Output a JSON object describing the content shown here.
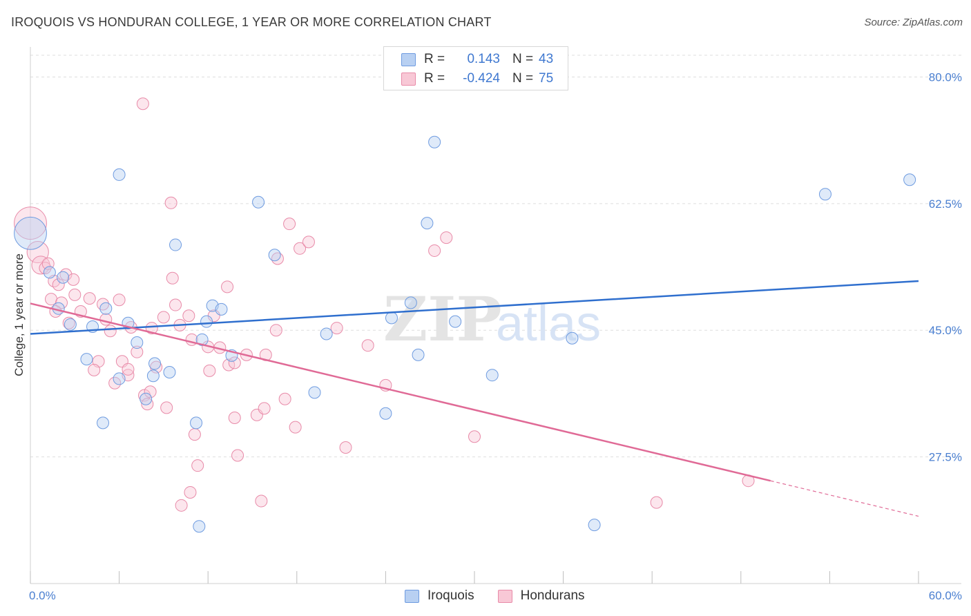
{
  "header": {
    "title": "IROQUOIS VS HONDURAN COLLEGE, 1 YEAR OR MORE CORRELATION CHART",
    "source": "Source: ZipAtlas.com"
  },
  "legend": {
    "r_label": "R =",
    "n_label": "N =",
    "items": [
      {
        "name": "Iroquois",
        "r": "0.143",
        "n": "43",
        "fill": "#b8d0f2",
        "stroke": "#6e9be0"
      },
      {
        "name": "Hondurans",
        "r": "-0.424",
        "n": "75",
        "fill": "#f8c8d6",
        "stroke": "#e88aa8"
      }
    ]
  },
  "watermark": {
    "zip": "ZIP",
    "atlas": "atlas"
  },
  "colors": {
    "iroquois_line": "#2f6fce",
    "honduran_line": "#e06a96",
    "tick_label": "#4a7fd0",
    "grid": "#dddddd"
  },
  "chart_data": {
    "type": "scatter",
    "title": "IROQUOIS VS HONDURAN COLLEGE, 1 YEAR OR MORE CORRELATION CHART",
    "xlabel": "",
    "ylabel": "College, 1 year or more",
    "xlim": [
      0,
      60
    ],
    "ylim": [
      10,
      83
    ],
    "x_tick_labels": [
      "0.0%",
      "60.0%"
    ],
    "y_ticks": [
      27.5,
      45.0,
      62.5,
      80.0
    ],
    "y_tick_labels": [
      "27.5%",
      "45.0%",
      "62.5%",
      "80.0%"
    ],
    "grid": "horizontal dashed",
    "legend_position": "top-center",
    "series": [
      {
        "name": "Iroquois",
        "r": 0.143,
        "n": 43,
        "trend": {
          "x": [
            0,
            60
          ],
          "y": [
            44.5,
            51.8
          ]
        },
        "points": [
          [
            0.0,
            58.4,
            18
          ],
          [
            1.3,
            53.0,
            8
          ],
          [
            2.2,
            52.3,
            8
          ],
          [
            1.9,
            48.0,
            8
          ],
          [
            2.7,
            45.8,
            8
          ],
          [
            4.2,
            45.5,
            8
          ],
          [
            3.8,
            41.0,
            8
          ],
          [
            5.1,
            48.0,
            8
          ],
          [
            6.6,
            46.0,
            8
          ],
          [
            7.2,
            43.3,
            8
          ],
          [
            6.0,
            38.3,
            8
          ],
          [
            8.4,
            40.4,
            8
          ],
          [
            8.3,
            38.7,
            8
          ],
          [
            9.4,
            39.2,
            8
          ],
          [
            7.8,
            35.5,
            8
          ],
          [
            4.9,
            32.2,
            8
          ],
          [
            6.0,
            66.5,
            8
          ],
          [
            9.8,
            56.8,
            8
          ],
          [
            11.6,
            43.7,
            8
          ],
          [
            11.9,
            46.2,
            8
          ],
          [
            12.3,
            48.4,
            8
          ],
          [
            12.9,
            47.9,
            8
          ],
          [
            13.6,
            41.5,
            8
          ],
          [
            11.2,
            32.2,
            8
          ],
          [
            11.4,
            17.9,
            8
          ],
          [
            15.4,
            62.7,
            8
          ],
          [
            16.5,
            55.4,
            8
          ],
          [
            19.2,
            36.4,
            8
          ],
          [
            20.0,
            44.5,
            8
          ],
          [
            24.4,
            46.7,
            8
          ],
          [
            25.7,
            48.8,
            8
          ],
          [
            24.0,
            33.5,
            8
          ],
          [
            26.2,
            41.6,
            8
          ],
          [
            26.8,
            59.8,
            8
          ],
          [
            27.3,
            71.0,
            8
          ],
          [
            28.7,
            46.2,
            8
          ],
          [
            31.2,
            38.8,
            8
          ],
          [
            36.6,
            43.9,
            8
          ],
          [
            38.1,
            18.1,
            8
          ],
          [
            53.7,
            63.8,
            8
          ],
          [
            59.4,
            65.8,
            8
          ]
        ]
      },
      {
        "name": "Hondurans",
        "r": -0.424,
        "n": 75,
        "trend": {
          "x": [
            0,
            50.0
          ],
          "y": [
            48.7,
            24.2
          ]
        },
        "trend_dashed": {
          "x": [
            50.0,
            60
          ],
          "y": [
            24.2,
            19.3
          ]
        },
        "points": [
          [
            0.0,
            59.8,
            18
          ],
          [
            0.5,
            55.8,
            12
          ],
          [
            0.7,
            54.0,
            10
          ],
          [
            1.0,
            53.6,
            8
          ],
          [
            1.2,
            54.2,
            8
          ],
          [
            1.6,
            51.8,
            8
          ],
          [
            1.9,
            51.3,
            8
          ],
          [
            2.4,
            52.7,
            8
          ],
          [
            2.9,
            52.0,
            8
          ],
          [
            3.0,
            49.9,
            8
          ],
          [
            1.4,
            49.3,
            8
          ],
          [
            2.1,
            48.8,
            8
          ],
          [
            1.7,
            47.6,
            8
          ],
          [
            2.6,
            46.0,
            8
          ],
          [
            3.4,
            47.6,
            8
          ],
          [
            4.0,
            49.4,
            8
          ],
          [
            4.9,
            48.6,
            8
          ],
          [
            5.1,
            46.5,
            8
          ],
          [
            5.4,
            44.9,
            8
          ],
          [
            6.0,
            49.2,
            8
          ],
          [
            6.8,
            45.4,
            8
          ],
          [
            7.2,
            42.0,
            8
          ],
          [
            6.2,
            40.7,
            8
          ],
          [
            4.6,
            40.7,
            8
          ],
          [
            4.3,
            39.5,
            8
          ],
          [
            5.7,
            37.7,
            8
          ],
          [
            6.6,
            38.8,
            8
          ],
          [
            6.6,
            39.6,
            8
          ],
          [
            7.7,
            36.0,
            8
          ],
          [
            7.9,
            34.8,
            8
          ],
          [
            8.1,
            36.5,
            8
          ],
          [
            8.5,
            39.9,
            8
          ],
          [
            8.2,
            45.3,
            8
          ],
          [
            9.0,
            46.8,
            8
          ],
          [
            9.5,
            62.6,
            8
          ],
          [
            9.6,
            52.2,
            8
          ],
          [
            9.8,
            48.5,
            8
          ],
          [
            10.1,
            45.7,
            8
          ],
          [
            10.7,
            47.0,
            8
          ],
          [
            10.9,
            43.7,
            8
          ],
          [
            9.2,
            34.3,
            8
          ],
          [
            11.1,
            30.6,
            8
          ],
          [
            11.3,
            26.3,
            8
          ],
          [
            10.8,
            22.6,
            8
          ],
          [
            10.2,
            20.8,
            8
          ],
          [
            12.0,
            42.7,
            8
          ],
          [
            12.4,
            47.0,
            8
          ],
          [
            12.8,
            42.6,
            8
          ],
          [
            13.3,
            51.0,
            8
          ],
          [
            13.4,
            40.2,
            8
          ],
          [
            12.1,
            39.4,
            8
          ],
          [
            13.8,
            40.5,
            8
          ],
          [
            13.8,
            32.9,
            8
          ],
          [
            14.0,
            27.7,
            8
          ],
          [
            14.6,
            41.6,
            8
          ],
          [
            15.3,
            33.3,
            8
          ],
          [
            15.8,
            34.2,
            8
          ],
          [
            15.9,
            41.6,
            8
          ],
          [
            15.6,
            21.4,
            8
          ],
          [
            16.7,
            54.9,
            8
          ],
          [
            16.6,
            45.0,
            8
          ],
          [
            17.2,
            35.5,
            8
          ],
          [
            17.5,
            59.7,
            8
          ],
          [
            17.9,
            31.6,
            8
          ],
          [
            18.2,
            56.3,
            8
          ],
          [
            18.8,
            57.2,
            8
          ],
          [
            20.7,
            45.3,
            8
          ],
          [
            21.3,
            28.8,
            8
          ],
          [
            22.8,
            42.9,
            8
          ],
          [
            24.0,
            37.4,
            8
          ],
          [
            27.3,
            56.0,
            8
          ],
          [
            28.1,
            57.8,
            8
          ],
          [
            30.0,
            30.3,
            8
          ],
          [
            42.3,
            21.2,
            8
          ],
          [
            48.5,
            24.2,
            8
          ],
          [
            7.6,
            76.3,
            8
          ]
        ]
      }
    ]
  }
}
